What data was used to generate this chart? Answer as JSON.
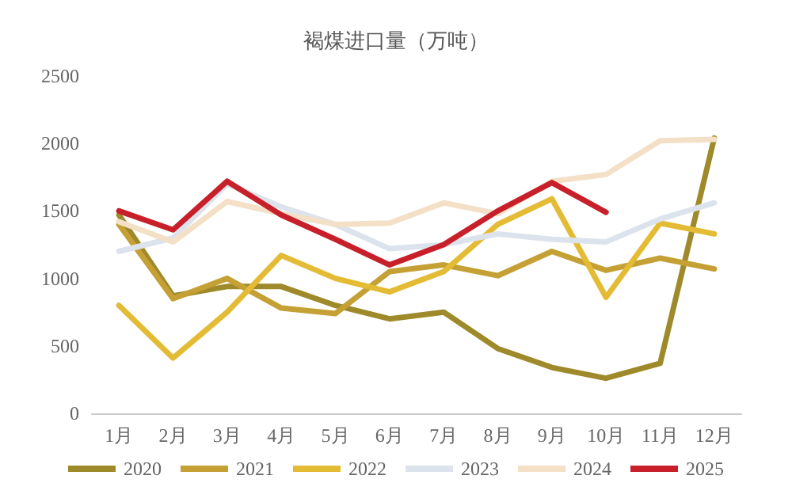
{
  "chart_data": {
    "type": "line",
    "title": "褐煤进口量（万吨）",
    "categories": [
      "1月",
      "2月",
      "3月",
      "4月",
      "5月",
      "6月",
      "7月",
      "8月",
      "9月",
      "10月",
      "11月",
      "12月"
    ],
    "series": [
      {
        "name": "2020",
        "color": "#9e8a2a",
        "values": [
          1470,
          870,
          940,
          940,
          800,
          700,
          750,
          480,
          340,
          260,
          370,
          2040
        ]
      },
      {
        "name": "2021",
        "color": "#c4a035",
        "values": [
          1400,
          850,
          1000,
          780,
          740,
          1050,
          1100,
          1020,
          1200,
          1060,
          1150,
          1070
        ]
      },
      {
        "name": "2022",
        "color": "#e3bb35",
        "values": [
          800,
          410,
          750,
          1170,
          1000,
          900,
          1050,
          1400,
          1590,
          860,
          1410,
          1330
        ]
      },
      {
        "name": "2023",
        "color": "#dde3ec",
        "values": [
          1200,
          1300,
          1700,
          1530,
          1400,
          1220,
          1250,
          1330,
          1290,
          1270,
          1440,
          1560
        ]
      },
      {
        "name": "2024",
        "color": "#f3e0c6",
        "values": [
          1420,
          1270,
          1570,
          1480,
          1400,
          1410,
          1560,
          1480,
          1720,
          1770,
          2020,
          2030
        ]
      },
      {
        "name": "2025",
        "color": "#c8202a",
        "values": [
          1500,
          1360,
          1720,
          1470,
          1290,
          1100,
          1250,
          1500,
          1710,
          1490,
          null,
          null
        ]
      }
    ],
    "ylim": [
      0,
      2500
    ],
    "yticks": [
      0,
      500,
      1000,
      1500,
      2000,
      2500
    ],
    "grid": false,
    "legend": "bottom",
    "marker": "none",
    "line_style": "solid"
  }
}
